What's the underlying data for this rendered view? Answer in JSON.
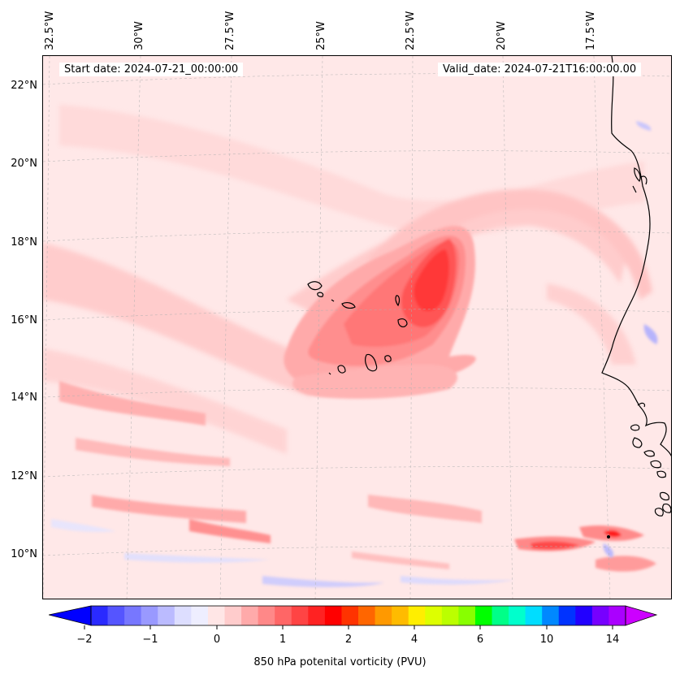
{
  "header": {
    "start_date": "Start date: 2024-07-21_00:00:00",
    "valid_date": "Valid_date: 2024-07-21T16:00:00.00"
  },
  "axes": {
    "longitude_labels": [
      "32.5°W",
      "30°W",
      "27.5°W",
      "25°W",
      "22.5°W",
      "20°W",
      "17.5°W"
    ],
    "latitude_labels": [
      "22°N",
      "20°N",
      "18°N",
      "16°N",
      "14°N",
      "12°N",
      "10°N"
    ]
  },
  "map": {
    "field": "850 hPa potential vorticity",
    "region": "Cape Verde Islands and West African coast",
    "features": [
      "coastline",
      "cape-verde-islands",
      "gridlines"
    ]
  },
  "colorbar": {
    "label": "850 hPa potenital vorticity (PVU)",
    "tick_labels": [
      "−2",
      "−1",
      "0",
      "1",
      "2",
      "4",
      "6",
      "10",
      "14"
    ],
    "colors": [
      "#0000ff",
      "#2a2aff",
      "#5555ff",
      "#7777ff",
      "#9999ff",
      "#bbbbff",
      "#dddeff",
      "#eeeeff",
      "#ffe6e6",
      "#ffcccc",
      "#ffaaaa",
      "#ff8888",
      "#ff6666",
      "#ff4444",
      "#ff2222",
      "#ff0000",
      "#ff3300",
      "#ff6600",
      "#ff9900",
      "#ffbb00",
      "#ffee00",
      "#ddff00",
      "#bbff00",
      "#88ff00",
      "#00ff00",
      "#00ff88",
      "#00ffcc",
      "#00ddff",
      "#0088ff",
      "#0033ff",
      "#2200ff",
      "#7700ff",
      "#aa00ff",
      "#cc00ff"
    ]
  }
}
